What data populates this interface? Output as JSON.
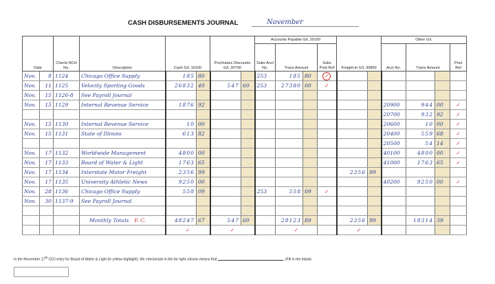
{
  "header": {
    "title": "CASH DISBURSEMENTS JOURNAL",
    "month": "November"
  },
  "columns": {
    "date": "Date",
    "check": "Check/ ACH No.",
    "description": "Description",
    "cash": "Cash G/L 10100",
    "discounts": "Purchases Discounts G/L 30700",
    "ap_group": "Accounts Payable G/L 20100",
    "subs_acct": "Subs Acct No.",
    "trans": "Trans Amount",
    "subs_post": "Subs Post Ref",
    "freight": "Freight-in G/L 30800",
    "other_group": "Other G/L",
    "acct": "Acct No.",
    "other_trans": "Trans Amount",
    "post_ref": "Post Ref"
  },
  "rows": [
    [
      "Nov.",
      "8",
      "1124",
      "Chicago Office Supply",
      [
        "185",
        "80"
      ],
      null,
      "253",
      [
        "185",
        "80"
      ],
      "✓",
      null,
      null,
      null,
      null
    ],
    [
      "Nov.",
      "11",
      "1125",
      "Velocity Sporting Goods",
      [
        "26832",
        "40"
      ],
      [
        "547",
        "60"
      ],
      "253",
      [
        "27380",
        "00"
      ],
      "✓",
      null,
      null,
      null,
      null
    ],
    [
      "Nov.",
      "15",
      "1126-8",
      "See Payroll Journal",
      null,
      null,
      null,
      null,
      null,
      null,
      null,
      null,
      null
    ],
    [
      "Nov.",
      "15",
      "1129",
      "Internal Revenue Service",
      [
        "1876",
        "92"
      ],
      null,
      null,
      null,
      null,
      null,
      "20900",
      [
        "944",
        "00"
      ],
      "✓"
    ],
    [
      null,
      null,
      null,
      null,
      null,
      null,
      null,
      null,
      null,
      null,
      "20700",
      [
        "932",
        "92"
      ],
      "✓"
    ],
    [
      "Nov.",
      "15",
      "1130",
      "Internal Revenue Service",
      [
        "10",
        "00"
      ],
      null,
      null,
      null,
      null,
      null,
      "20600",
      [
        "10",
        "00"
      ],
      "✓"
    ],
    [
      "Nov.",
      "15",
      "1131",
      "State of Illinois",
      [
        "613",
        "82"
      ],
      null,
      null,
      null,
      null,
      null,
      "20400",
      [
        "559",
        "68"
      ],
      "✓"
    ],
    [
      null,
      null,
      null,
      null,
      null,
      null,
      null,
      null,
      null,
      null,
      "20500",
      [
        "54",
        "14"
      ],
      "✓"
    ],
    [
      "Nov.",
      "17",
      "1132",
      "Worldwide Management",
      [
        "4800",
        "00"
      ],
      null,
      null,
      null,
      null,
      null,
      "40100",
      [
        "4800",
        "00"
      ],
      "✓"
    ],
    [
      "Nov.",
      "17",
      "1133",
      "Board of Water & Light",
      [
        "1763",
        "65"
      ],
      null,
      null,
      null,
      null,
      null,
      "41000",
      [
        "1763",
        "65"
      ],
      "✓"
    ],
    [
      "Nov.",
      "17",
      "1134",
      "Interstate Motor Freight",
      [
        "2356",
        "99"
      ],
      null,
      null,
      null,
      null,
      [
        "2356",
        "99"
      ],
      null,
      null,
      null
    ],
    [
      "Nov.",
      "17",
      "1135",
      "University Athletic News",
      [
        "9250",
        "00"
      ],
      null,
      null,
      null,
      null,
      null,
      "40200",
      [
        "9250",
        "00"
      ],
      "✓"
    ],
    [
      "Nov.",
      "28",
      "1136",
      "Chicago Office Supply",
      [
        "558",
        "09"
      ],
      null,
      "253",
      [
        "558",
        "09"
      ],
      "✓",
      null,
      null,
      null,
      null
    ],
    [
      "Nov.",
      "30",
      "1137-9",
      "See Payroll Journal",
      null,
      null,
      null,
      null,
      null,
      null,
      null,
      null,
      null
    ]
  ],
  "totals": {
    "label": "Monthly Totals",
    "note": "F. C.",
    "cash": [
      "48247",
      "67"
    ],
    "discounts": [
      "547",
      "60"
    ],
    "trans": [
      "28123",
      "89"
    ],
    "freight": [
      "2356",
      "99"
    ],
    "other_trans": [
      "18314",
      "39"
    ]
  },
  "totals_post": {
    "cash": "✓",
    "discounts": "✓",
    "trans": "✓",
    "freight": "✓"
  },
  "question": {
    "before": "In the November 17",
    "sup": "th",
    "after": " CDJ entry for Board of Water & Light (in yellow highlight), the checkmark in the far right column means that",
    "end": ". (Fill in the blank)"
  }
}
